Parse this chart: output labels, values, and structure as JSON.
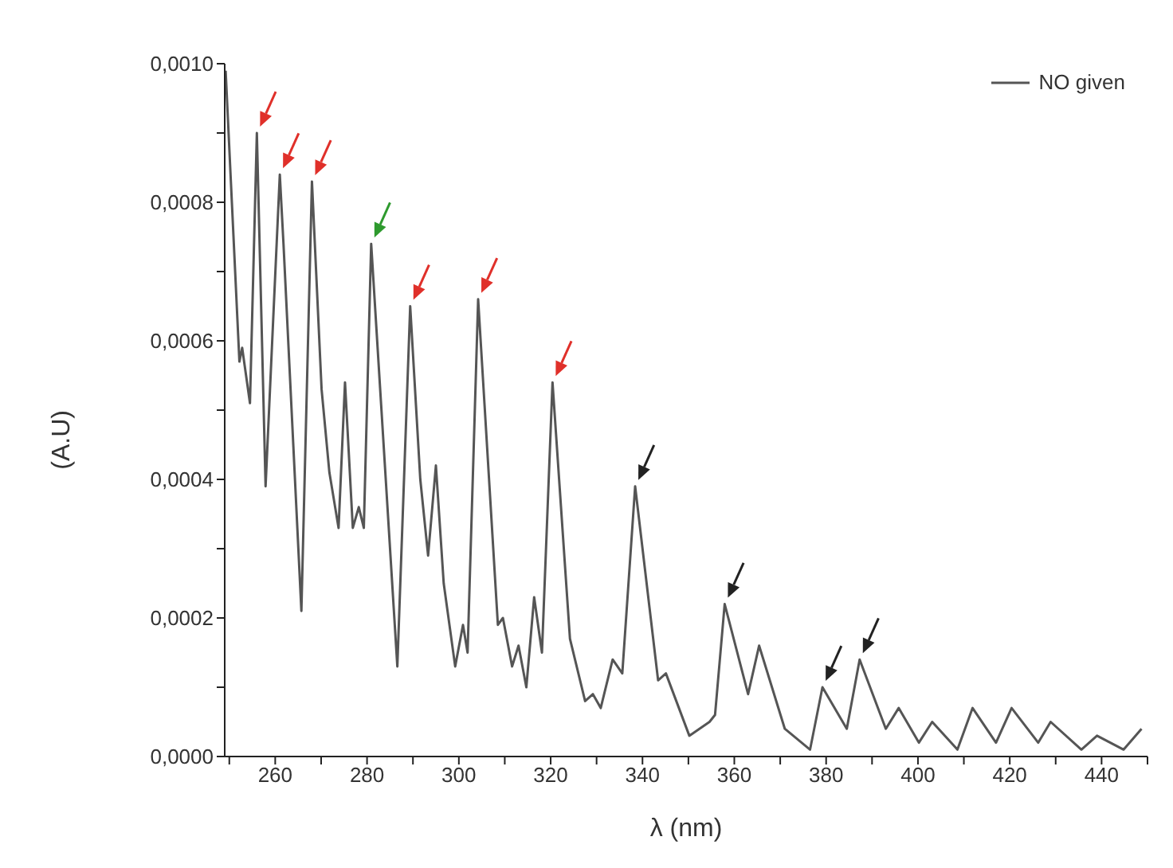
{
  "chart_data": {
    "type": "line",
    "xlabel": "λ (nm)",
    "ylabel": "(A.U)",
    "x": [
      249.2,
      252.2,
      252.8,
      254.5,
      256.0,
      257.9,
      261.0,
      261.8,
      265.7,
      268.0,
      270.1,
      271.8,
      273.8,
      275.2,
      276.9,
      278.2,
      279.3,
      280.9,
      286.6,
      289.4,
      291.6,
      293.3,
      295.0,
      296.7,
      299.2,
      300.9,
      301.9,
      304.2,
      308.5,
      309.6,
      311.6,
      313.0,
      314.7,
      316.4,
      318.1,
      320.4,
      324.2,
      327.5,
      329.2,
      330.9,
      333.5,
      335.6,
      338.4,
      343.4,
      345.1,
      350.2,
      354.6,
      355.8,
      357.9,
      363.0,
      365.4,
      371.0,
      376.5,
      379.2,
      384.5,
      387.3,
      393.0,
      395.8,
      400.2,
      403.1,
      408.6,
      411.9,
      417.0,
      420.4,
      426.2,
      428.9,
      435.6,
      439.0,
      444.8,
      448.7
    ],
    "series": [
      {
        "name": "NO given",
        "color": "#555555",
        "values": [
          0.00099,
          0.00057,
          0.00059,
          0.00051,
          0.0009,
          0.00039,
          0.00084,
          0.00074,
          0.00021,
          0.00083,
          0.00053,
          0.00041,
          0.00033,
          0.00054,
          0.00033,
          0.00036,
          0.00033,
          0.00074,
          0.00013,
          0.00065,
          0.0004,
          0.00029,
          0.00042,
          0.00025,
          0.00013,
          0.00019,
          0.00015,
          0.00066,
          0.00019,
          0.0002,
          0.00013,
          0.00016,
          0.0001,
          0.00023,
          0.00015,
          0.00054,
          0.00017,
          8e-05,
          9e-05,
          7e-05,
          0.00014,
          0.00012,
          0.00039,
          0.00011,
          0.00012,
          3e-05,
          5e-05,
          6e-05,
          0.00022,
          9e-05,
          0.00016,
          4e-05,
          1e-05,
          0.0001,
          4e-05,
          0.00014,
          4e-05,
          7e-05,
          2e-05,
          5e-05,
          1e-05,
          7e-05,
          2e-05,
          7e-05,
          2e-05,
          5e-05,
          1e-05,
          3e-05,
          1e-05,
          4e-05
        ]
      }
    ],
    "xlim": [
      249,
      450
    ],
    "xticks": [
      {
        "value": 250,
        "label": null
      },
      260,
      {
        "value": 270,
        "label": null
      },
      280,
      {
        "value": 290,
        "label": null
      },
      300,
      {
        "value": 310,
        "label": null
      },
      320,
      {
        "value": 330,
        "label": null
      },
      340,
      {
        "value": 350,
        "label": null
      },
      360,
      {
        "value": 370,
        "label": null
      },
      380,
      {
        "value": 390,
        "label": null
      },
      400,
      {
        "value": 410,
        "label": null
      },
      420,
      {
        "value": 430,
        "label": null
      },
      440,
      {
        "value": 450,
        "label": null
      }
    ],
    "ylim": [
      0,
      0.001
    ],
    "yticks": [
      {
        "value": 0,
        "label": "0,0000"
      },
      {
        "value": 0.0001,
        "label": null
      },
      {
        "value": 0.0002,
        "label": "0,0002"
      },
      {
        "value": 0.0003,
        "label": null
      },
      {
        "value": 0.0004,
        "label": "0,0004"
      },
      {
        "value": 0.0005,
        "label": null
      },
      {
        "value": 0.0006,
        "label": "0,0006"
      },
      {
        "value": 0.0007,
        "label": null
      },
      {
        "value": 0.0008,
        "label": "0,0008"
      },
      {
        "value": 0.0009,
        "label": null
      },
      {
        "value": 0.001,
        "label": "0,0010"
      }
    ],
    "legend": "top right",
    "grid": false,
    "marker": "none",
    "line_style": "solid"
  }
}
